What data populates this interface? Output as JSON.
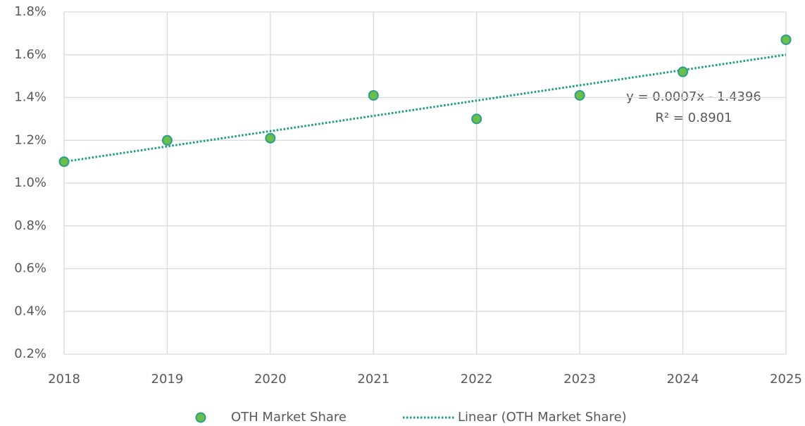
{
  "chart_data": {
    "type": "scatter",
    "xlim": [
      2018,
      2025
    ],
    "xticks": [
      2018,
      2019,
      2020,
      2021,
      2022,
      2023,
      2024,
      2025
    ],
    "ylim": [
      0.2,
      1.8
    ],
    "yticks": [
      {
        "value": 0.2,
        "label": "0.2%"
      },
      {
        "value": 0.4,
        "label": "0.4%"
      },
      {
        "value": 0.6,
        "label": "0.6%"
      },
      {
        "value": 0.8,
        "label": "0.8%"
      },
      {
        "value": 1.0,
        "label": "1.0%"
      },
      {
        "value": 1.2,
        "label": "1.2%"
      },
      {
        "value": 1.4,
        "label": "1.4%"
      },
      {
        "value": 1.6,
        "label": "1.6%"
      },
      {
        "value": 1.8,
        "label": "1.8%"
      }
    ],
    "grid": true,
    "legend": "bottom",
    "series": [
      {
        "name": "OTH Market Share",
        "type": "scatter",
        "color": "#6abf4b",
        "edge_color": "#2a9d8f",
        "x": [
          2018,
          2019,
          2020,
          2021,
          2022,
          2023,
          2024,
          2025
        ],
        "values": [
          1.1,
          1.2,
          1.21,
          1.41,
          1.3,
          1.41,
          1.52,
          1.67
        ]
      },
      {
        "name": "Linear (OTH Market Share)",
        "type": "trendline",
        "color": "#1a9e80",
        "x": [
          2018,
          2025
        ],
        "values": [
          1.1,
          1.6
        ]
      }
    ],
    "annotations": [
      "y = 0.0007x - 1.4396",
      "R² = 0.8901"
    ]
  }
}
